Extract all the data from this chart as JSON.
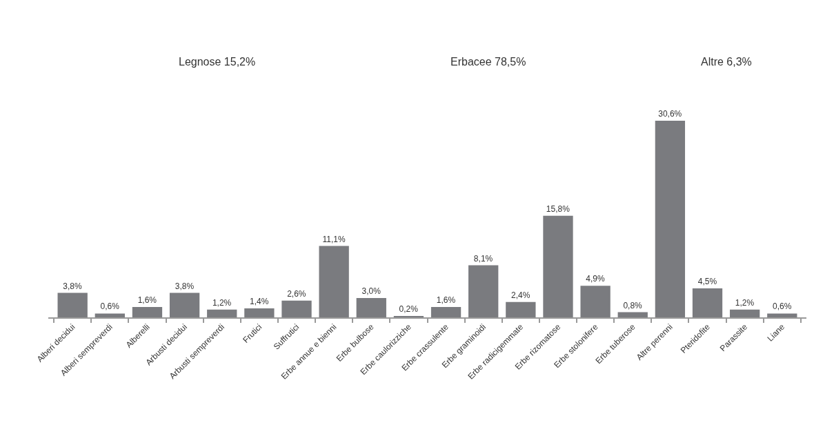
{
  "chart_data": {
    "type": "bar",
    "categories": [
      "Alberi decidui",
      "Alberi sempreverdi",
      "Alberelli",
      "Arbusti decidui",
      "Arbusti sempreverdi",
      "Frutici",
      "Suffrutici",
      "Erbe annue e bienni",
      "Erbe bulbose",
      "Erbe caulorizziche",
      "Erbe crassulente",
      "Erbe graminoidi",
      "Erbe radicigemmate",
      "Erbe rizomatose",
      "Erbe stolonifere",
      "Erbe tuberose",
      "Altre perenni",
      "Pteridofite",
      "Parassite",
      "Liane"
    ],
    "values": [
      3.8,
      0.6,
      1.6,
      3.8,
      1.2,
      1.4,
      2.6,
      11.1,
      3.0,
      0.2,
      1.6,
      8.1,
      2.4,
      15.8,
      4.9,
      0.8,
      30.6,
      4.5,
      1.2,
      0.6
    ],
    "value_labels": [
      "3,8%",
      "0,6%",
      "1,6%",
      "3,8%",
      "1,2%",
      "1,4%",
      "2,6%",
      "11,1%",
      "3,0%",
      "0,2%",
      "1,6%",
      "8,1%",
      "2,4%",
      "15,8%",
      "4,9%",
      "0,8%",
      "30,6%",
      "4,5%",
      "1,2%",
      "0,6%"
    ],
    "color": "#7a7b7f",
    "annotations": [
      "Legnose 15,2%",
      "Erbacee 78,5%",
      "Altre 6,3%"
    ],
    "legend": false
  }
}
